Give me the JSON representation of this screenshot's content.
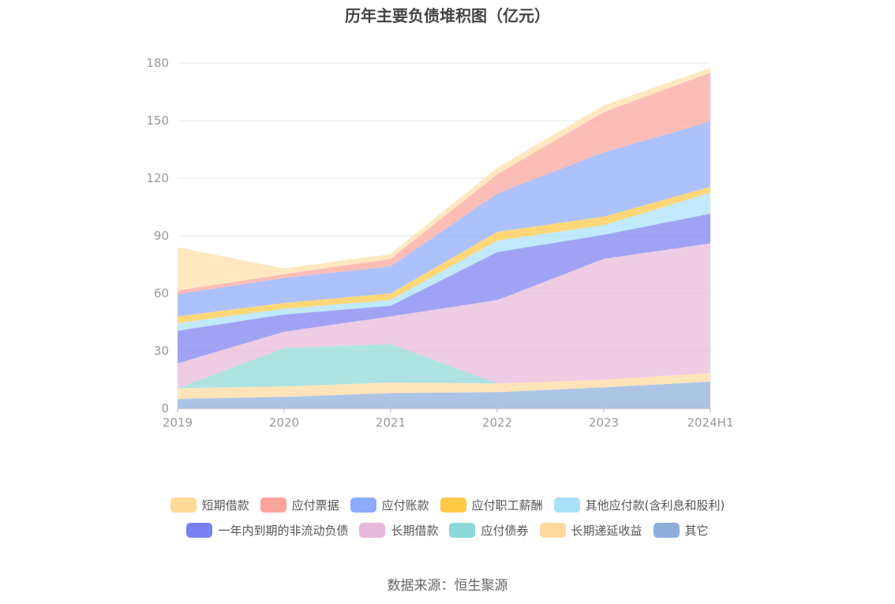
{
  "title": "历年主要负债堆积图（亿元）",
  "source": "数据来源：恒生聚源",
  "chart_data": {
    "type": "area",
    "stacked": true,
    "categories": [
      "2019",
      "2020",
      "2021",
      "2022",
      "2023",
      "2024H1"
    ],
    "ylim": [
      0,
      180
    ],
    "yticks": [
      0,
      30,
      60,
      90,
      120,
      150,
      180
    ],
    "grid": true,
    "legend_position": "bottom",
    "series": [
      {
        "name": "其它",
        "color": "#8eafd9",
        "values": [
          5,
          6,
          8,
          8.5,
          11,
          14
        ]
      },
      {
        "name": "长期递延收益",
        "color": "#ffd9a0",
        "values": [
          5.5,
          5.5,
          5.5,
          4.5,
          4,
          4.5
        ]
      },
      {
        "name": "应付债券",
        "color": "#8dd8d8",
        "values": [
          0,
          20,
          20,
          0,
          0,
          0
        ]
      },
      {
        "name": "长期借款",
        "color": "#e6b8da",
        "values": [
          13,
          8.5,
          14.5,
          43.5,
          63,
          67.5
        ]
      },
      {
        "name": "一年内到期的非流动负债",
        "color": "#7b7ff0",
        "values": [
          17,
          9,
          5.5,
          25,
          12.5,
          15.5
        ]
      },
      {
        "name": "其他应付款(含利息和股利)",
        "color": "#a8e0f7",
        "values": [
          4,
          3,
          3,
          6,
          5,
          11
        ]
      },
      {
        "name": "应付职工薪酬",
        "color": "#ffc845",
        "values": [
          3.5,
          3,
          3.5,
          4.5,
          4.5,
          3
        ]
      },
      {
        "name": "应付账款",
        "color": "#8daafc",
        "values": [
          11.5,
          13,
          14,
          20,
          33.5,
          34
        ]
      },
      {
        "name": "应付票据",
        "color": "#f9a39a",
        "values": [
          2,
          2,
          4,
          10,
          21,
          25.5
        ]
      },
      {
        "name": "短期借款",
        "color": "#ffdfa6",
        "values": [
          22.5,
          3,
          2.5,
          3.5,
          3.5,
          2.5
        ]
      }
    ]
  },
  "legend": {
    "rows": [
      [
        {
          "name": "短期借款",
          "color": "#ffd996"
        },
        {
          "name": "应付票据",
          "color": "#f9a39a"
        },
        {
          "name": "应付账款",
          "color": "#8daafc"
        },
        {
          "name": "应付职工薪酬",
          "color": "#ffc845"
        },
        {
          "name": "其他应付款(含利息和股利)",
          "color": "#a8e0f7"
        }
      ],
      [
        {
          "name": "一年内到期的非流动负债",
          "color": "#7b7ff0"
        },
        {
          "name": "长期借款",
          "color": "#e6b8da"
        },
        {
          "name": "应付债券",
          "color": "#8dd8d8"
        },
        {
          "name": "长期递延收益",
          "color": "#ffd9a0"
        },
        {
          "name": "其它",
          "color": "#8eafd9"
        }
      ]
    ]
  }
}
